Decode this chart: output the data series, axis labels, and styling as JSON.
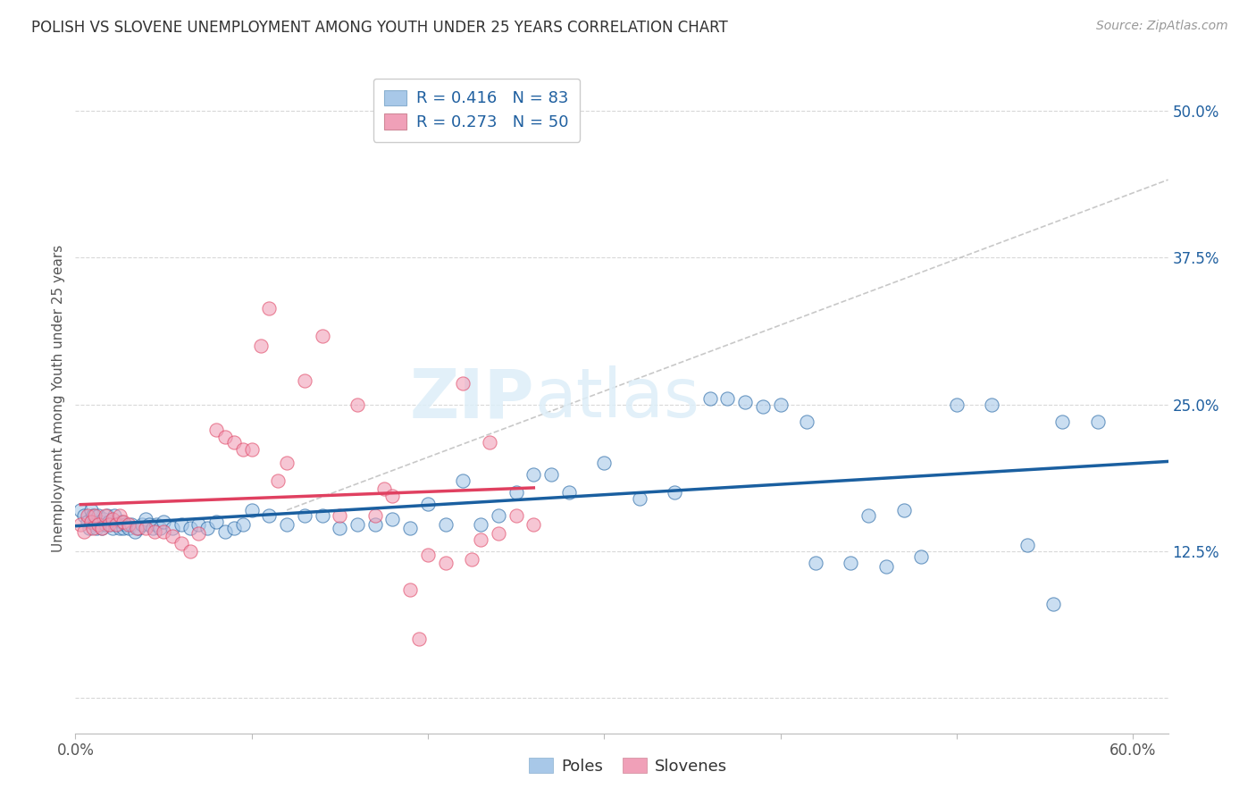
{
  "title": "POLISH VS SLOVENE UNEMPLOYMENT AMONG YOUTH UNDER 25 YEARS CORRELATION CHART",
  "source": "Source: ZipAtlas.com",
  "ylabel": "Unemployment Among Youth under 25 years",
  "xlim": [
    0.0,
    0.62
  ],
  "ylim": [
    -0.03,
    0.54
  ],
  "xticks": [
    0.0,
    0.1,
    0.2,
    0.3,
    0.4,
    0.5,
    0.6
  ],
  "xticklabels": [
    "0.0%",
    "",
    "",
    "",
    "",
    "",
    "60.0%"
  ],
  "yticks_right": [
    0.0,
    0.125,
    0.25,
    0.375,
    0.5
  ],
  "yticklabels_right": [
    "",
    "12.5%",
    "25.0%",
    "37.5%",
    "50.0%"
  ],
  "poles_color": "#a8c8e8",
  "slovenes_color": "#f0a0b8",
  "poles_line_color": "#1a5fa0",
  "slovenes_line_color": "#e04060",
  "R_poles": 0.416,
  "N_poles": 83,
  "R_slovenes": 0.273,
  "N_slovenes": 50,
  "background_color": "#ffffff",
  "grid_color": "#d8d8d8",
  "watermark_zip": "ZIP",
  "watermark_atlas": "atlas",
  "watermark_color_zip": "#c8dce8",
  "watermark_color_atlas": "#c8dce8",
  "poles_x": [
    0.003,
    0.005,
    0.007,
    0.008,
    0.009,
    0.01,
    0.011,
    0.012,
    0.013,
    0.014,
    0.015,
    0.016,
    0.017,
    0.018,
    0.019,
    0.02,
    0.021,
    0.022,
    0.024,
    0.025,
    0.026,
    0.027,
    0.028,
    0.03,
    0.032,
    0.034,
    0.036,
    0.038,
    0.04,
    0.042,
    0.044,
    0.046,
    0.048,
    0.05,
    0.055,
    0.06,
    0.065,
    0.07,
    0.075,
    0.08,
    0.085,
    0.09,
    0.095,
    0.1,
    0.11,
    0.12,
    0.13,
    0.14,
    0.15,
    0.16,
    0.17,
    0.18,
    0.19,
    0.2,
    0.21,
    0.22,
    0.23,
    0.24,
    0.25,
    0.26,
    0.27,
    0.28,
    0.3,
    0.32,
    0.34,
    0.36,
    0.37,
    0.38,
    0.39,
    0.4,
    0.42,
    0.44,
    0.46,
    0.48,
    0.5,
    0.52,
    0.54,
    0.555,
    0.56,
    0.58,
    0.415,
    0.45,
    0.47
  ],
  "poles_y": [
    0.16,
    0.155,
    0.15,
    0.145,
    0.16,
    0.155,
    0.148,
    0.145,
    0.155,
    0.15,
    0.145,
    0.152,
    0.148,
    0.155,
    0.15,
    0.148,
    0.145,
    0.155,
    0.148,
    0.145,
    0.15,
    0.145,
    0.148,
    0.145,
    0.148,
    0.142,
    0.145,
    0.148,
    0.152,
    0.148,
    0.145,
    0.148,
    0.145,
    0.15,
    0.145,
    0.148,
    0.145,
    0.148,
    0.145,
    0.15,
    0.142,
    0.145,
    0.148,
    0.16,
    0.155,
    0.148,
    0.155,
    0.155,
    0.145,
    0.148,
    0.148,
    0.152,
    0.145,
    0.165,
    0.148,
    0.185,
    0.148,
    0.155,
    0.175,
    0.19,
    0.19,
    0.175,
    0.2,
    0.17,
    0.175,
    0.255,
    0.255,
    0.252,
    0.248,
    0.25,
    0.115,
    0.115,
    0.112,
    0.12,
    0.25,
    0.25,
    0.13,
    0.08,
    0.235,
    0.235,
    0.235,
    0.155,
    0.16
  ],
  "slovenes_x": [
    0.003,
    0.005,
    0.007,
    0.009,
    0.01,
    0.011,
    0.013,
    0.015,
    0.017,
    0.019,
    0.021,
    0.023,
    0.025,
    0.027,
    0.03,
    0.035,
    0.04,
    0.045,
    0.05,
    0.055,
    0.06,
    0.065,
    0.07,
    0.08,
    0.085,
    0.09,
    0.095,
    0.1,
    0.105,
    0.11,
    0.115,
    0.12,
    0.13,
    0.14,
    0.15,
    0.16,
    0.17,
    0.175,
    0.18,
    0.19,
    0.195,
    0.2,
    0.21,
    0.22,
    0.225,
    0.23,
    0.235,
    0.24,
    0.25,
    0.26
  ],
  "slovenes_y": [
    0.148,
    0.142,
    0.155,
    0.15,
    0.145,
    0.155,
    0.148,
    0.145,
    0.155,
    0.148,
    0.152,
    0.148,
    0.155,
    0.15,
    0.148,
    0.145,
    0.145,
    0.142,
    0.142,
    0.138,
    0.132,
    0.125,
    0.14,
    0.228,
    0.222,
    0.218,
    0.212,
    0.212,
    0.3,
    0.332,
    0.185,
    0.2,
    0.27,
    0.308,
    0.155,
    0.25,
    0.155,
    0.178,
    0.172,
    0.092,
    0.05,
    0.122,
    0.115,
    0.268,
    0.118,
    0.135,
    0.218,
    0.14,
    0.155,
    0.148
  ]
}
